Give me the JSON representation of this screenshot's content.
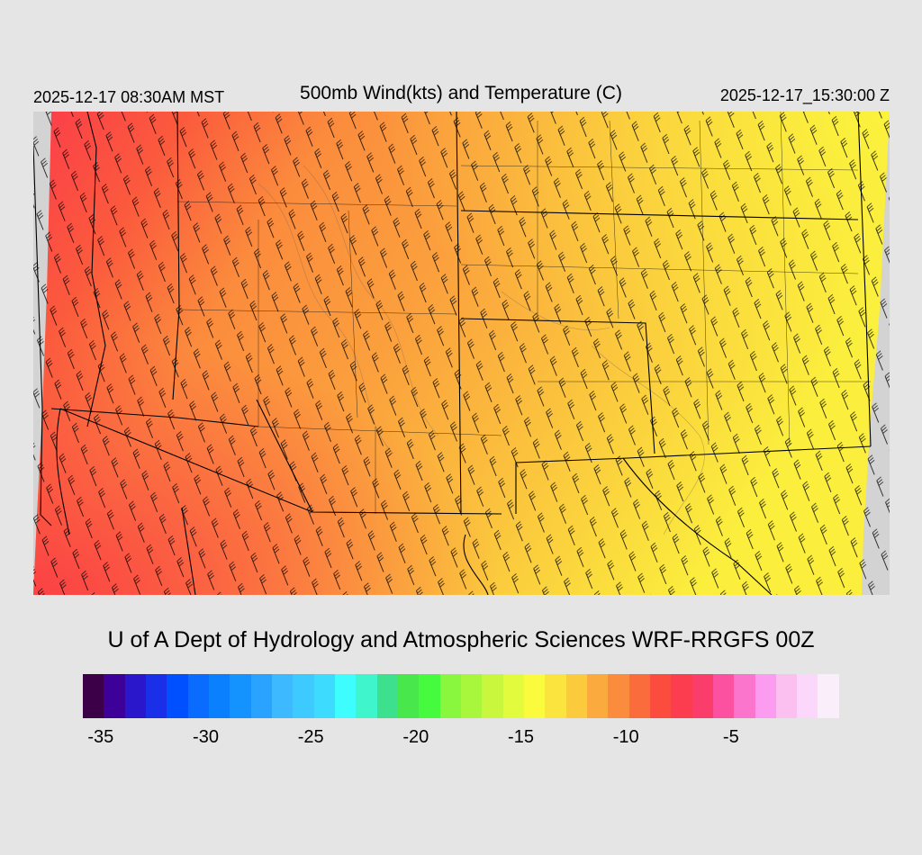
{
  "header": {
    "local_time": "2025-12-17 08:30AM MST",
    "title": "500mb Wind(kts) and Temperature (C)",
    "utc_time": "2025-12-17_15:30:00 Z"
  },
  "credit": "U of A Dept of Hydrology and Atmospheric Sciences WRF-RRGFS 00Z",
  "map": {
    "field": "500mb temperature (C) with wind barbs (kts)",
    "background_color": "#d3d3d3",
    "barb_color": "#000000",
    "border_color": "#000000",
    "contour_color": "#8a6a55"
  },
  "colorbar": {
    "colors": [
      "#3b0048",
      "#3d0099",
      "#2a17cc",
      "#1a2fe8",
      "#0050ff",
      "#0a6bff",
      "#0a80ff",
      "#1493ff",
      "#2aa2ff",
      "#3dbaff",
      "#3dcaff",
      "#3ddcff",
      "#3dfdff",
      "#3ef5cc",
      "#3de08c",
      "#48e84c",
      "#46fb3d",
      "#88f73d",
      "#a8f73d",
      "#c9f73d",
      "#e2fc3d",
      "#fbfb3d",
      "#fbe43d",
      "#fbca3d",
      "#fbab3d",
      "#fb8c3d",
      "#fb6c3d",
      "#fb4c3d",
      "#fb3d4f",
      "#fb3d6c",
      "#fb51a0",
      "#fb75cc",
      "#fb9cf0",
      "#fbbff0",
      "#fbd8fb",
      "#fbeefb"
    ],
    "tick_labels": [
      "-35",
      "-30",
      "-25",
      "-20",
      "-15",
      "-10",
      "-5"
    ]
  }
}
